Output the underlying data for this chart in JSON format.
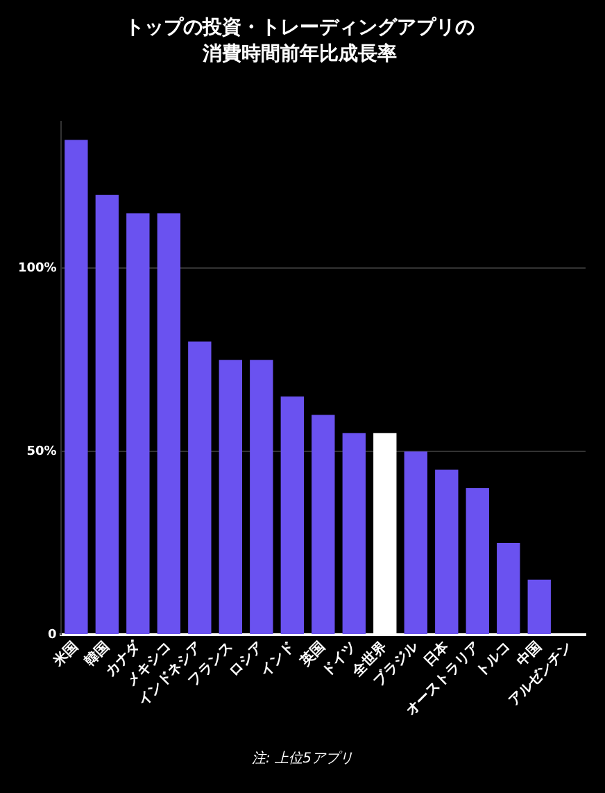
{
  "chart_data": {
    "type": "bar",
    "title": "トップの投資・トレーディングアプリの",
    "subtitle": "消費時間前年比成長率",
    "categories": [
      "米国",
      "韓国",
      "カナダ",
      "メキシコ",
      "インドネシア",
      "フランス",
      "ロシア",
      "インド",
      "英国",
      "ドイツ",
      "全世界",
      "ブラジル",
      "日本",
      "オーストラリア",
      "トルコ",
      "中国",
      "アルゼンチン"
    ],
    "values": [
      135,
      120,
      115,
      115,
      80,
      75,
      75,
      65,
      60,
      55,
      55,
      50,
      45,
      40,
      25,
      15,
      0
    ],
    "colors": [
      "#6a52f0",
      "#6a52f0",
      "#6a52f0",
      "#6a52f0",
      "#6a52f0",
      "#6a52f0",
      "#6a52f0",
      "#6a52f0",
      "#6a52f0",
      "#6a52f0",
      "#ffffff",
      "#6a52f0",
      "#6a52f0",
      "#6a52f0",
      "#6a52f0",
      "#6a52f0",
      "#6a52f0"
    ],
    "ylim": [
      0,
      140
    ],
    "yticks": [
      {
        "value": 0,
        "label": "0"
      },
      {
        "value": 50,
        "label": "50%"
      },
      {
        "value": 100,
        "label": "100%"
      }
    ],
    "grid": "y",
    "legend": false,
    "annotations": [
      "注: 上位5アプリ"
    ]
  }
}
